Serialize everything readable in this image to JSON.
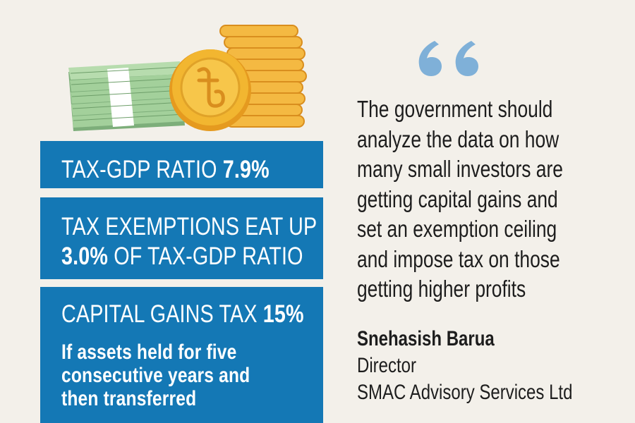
{
  "stats": {
    "ratio": {
      "text": "TAX-GDP RATIO ",
      "value": "7.9%"
    },
    "exemptions": {
      "line1": "TAX EXEMPTIONS EAT UP",
      "value": "3.0%",
      "line2_rest": " OF TAX-GDP RATIO"
    },
    "capital_gains": {
      "text": "CAPITAL GAINS TAX ",
      "value": "15%",
      "note_lines": [
        "If assets held for five",
        "consecutive years and",
        "then transferred"
      ]
    }
  },
  "quote": {
    "lines": [
      "The government should",
      "analyze the data on how",
      "many small investors are",
      "getting capital gains and",
      "set an exemption ceiling",
      "and impose tax on those",
      "getting higher profits"
    ],
    "author": "Snehasish Barua",
    "role": "Director",
    "organization": "SMAC Advisory Services Ltd"
  },
  "colors": {
    "background": "#f3f0ea",
    "box": "#1478b5",
    "quote_mark": "#7fb0d8",
    "coin": "#f2b630",
    "cash": "#8fc48a"
  },
  "icons": [
    "cash-stack-icon",
    "coin-stack-icon",
    "taka-coin-icon",
    "quote-mark-icon"
  ]
}
